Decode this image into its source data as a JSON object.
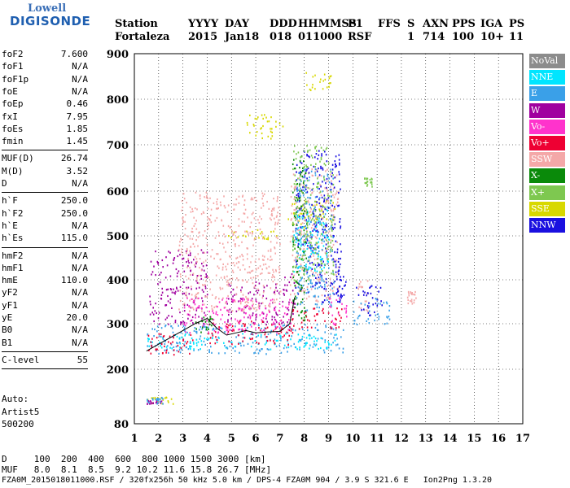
{
  "logo": {
    "top": "Lowell",
    "bottom": "DIGISONDE"
  },
  "header": {
    "labels": [
      "Station",
      "YYYY",
      "DAY",
      "DDD",
      "HHMMSS",
      "P1",
      "FFS",
      "S",
      "AXN",
      "PPS",
      "IGA",
      "PS"
    ],
    "values": [
      "Fortaleza",
      "2015",
      "Jan18",
      "018",
      "011000",
      "RSF",
      "1",
      "714",
      "100",
      "10+",
      "11"
    ]
  },
  "params": [
    {
      "group": [
        {
          "name": "foF2",
          "value": "7.600"
        },
        {
          "name": "foF1",
          "value": "N/A"
        },
        {
          "name": "foF1p",
          "value": "N/A"
        },
        {
          "name": "foE",
          "value": "N/A"
        },
        {
          "name": "foEp",
          "value": "0.46"
        },
        {
          "name": "fxI",
          "value": "7.95"
        },
        {
          "name": "foEs",
          "value": "1.85"
        },
        {
          "name": "fmin",
          "value": "1.45"
        }
      ]
    },
    {
      "group": [
        {
          "name": "MUF(D)",
          "value": "26.74"
        },
        {
          "name": "M(D)",
          "value": "3.52"
        },
        {
          "name": "D",
          "value": "N/A"
        }
      ]
    },
    {
      "group": [
        {
          "name": "h`F",
          "value": "250.0"
        },
        {
          "name": "h`F2",
          "value": "250.0"
        },
        {
          "name": "h`E",
          "value": "N/A"
        },
        {
          "name": "h`Es",
          "value": "115.0"
        }
      ]
    },
    {
      "group": [
        {
          "name": "hmF2",
          "value": "N/A"
        },
        {
          "name": "hmF1",
          "value": "N/A"
        },
        {
          "name": "hmE",
          "value": "110.0"
        },
        {
          "name": "yF2",
          "value": "N/A"
        },
        {
          "name": "yF1",
          "value": "N/A"
        },
        {
          "name": "yE",
          "value": "20.0"
        },
        {
          "name": "B0",
          "value": "N/A"
        },
        {
          "name": "B1",
          "value": "N/A"
        }
      ]
    },
    {
      "group": [
        {
          "name": "C-level",
          "value": "55"
        }
      ]
    }
  ],
  "auto": {
    "line1": "Auto:",
    "line2": "Artist5",
    "line3": "500200"
  },
  "legend": [
    {
      "label": "NoVal",
      "color": "#8c8c8c"
    },
    {
      "label": "NNE",
      "color": "#00e5ff"
    },
    {
      "label": "E",
      "color": "#3aa0e8"
    },
    {
      "label": "W",
      "color": "#a0009f"
    },
    {
      "label": "Vo-",
      "color": "#ff33cc"
    },
    {
      "label": "Vo+",
      "color": "#ee0033"
    },
    {
      "label": "SSW",
      "color": "#f4a8a8"
    },
    {
      "label": "X-",
      "color": "#0a8a0a"
    },
    {
      "label": "X+",
      "color": "#7ec850"
    },
    {
      "label": "SSE",
      "color": "#d8d800"
    },
    {
      "label": "NNW",
      "color": "#1a10e0"
    }
  ],
  "footer": {
    "d_line": "D     100  200  400  600  800 1000 1500 3000 [km]",
    "muf_line": "MUF   8.0  8.1  8.5  9.2 10.2 11.6 15.8 26.7 [MHz]",
    "file_line": "FZA0M_2015018011000.RSF / 320fx256h 50 kHz 5.0 km / DPS-4 FZA0M 904 / 3.9 S 321.6 E   Ion2Png 1.3.20"
  },
  "chart_data": {
    "type": "scatter",
    "title": "",
    "xlabel": "",
    "ylabel": "",
    "xlim": [
      1,
      17
    ],
    "ylim": [
      80,
      900
    ],
    "xticks": [
      1,
      2,
      3,
      4,
      5,
      6,
      7,
      8,
      9,
      10,
      11,
      12,
      13,
      14,
      15,
      16,
      17
    ],
    "yticks": [
      80,
      200,
      300,
      400,
      500,
      600,
      700,
      800,
      900
    ],
    "grid": true,
    "legend_position": "right",
    "series": [
      {
        "name": "SSE",
        "color": "#d8d800",
        "regions": [
          {
            "x": [
              4.6,
              6.9
            ],
            "y": [
              490,
              515
            ]
          },
          {
            "x": [
              5.6,
              7.1
            ],
            "y": [
              715,
              770
            ]
          },
          {
            "x": [
              7.3,
              9.3
            ],
            "y": [
              520,
              580
            ]
          },
          {
            "x": [
              1.5,
              2.6
            ],
            "y": [
              125,
              140
            ]
          },
          {
            "x": [
              8.0,
              9.3
            ],
            "y": [
              820,
              860
            ]
          }
        ]
      },
      {
        "name": "W",
        "color": "#a0009f",
        "regions": [
          {
            "x": [
              1.6,
              4.0
            ],
            "y": [
              300,
              470
            ]
          },
          {
            "x": [
              4.8,
              7.0
            ],
            "y": [
              300,
              400
            ]
          },
          {
            "x": [
              7.0,
              7.6
            ],
            "y": [
              300,
              420
            ]
          },
          {
            "x": [
              1.5,
              2.1
            ],
            "y": [
              125,
              133
            ]
          }
        ]
      },
      {
        "name": "SSW",
        "color": "#f4a8a8",
        "regions": [
          {
            "x": [
              2.8,
              7.0
            ],
            "y": [
              330,
              600
            ]
          },
          {
            "x": [
              7.4,
              9.4
            ],
            "y": [
              350,
              650
            ]
          },
          {
            "x": [
              10.2,
              10.6
            ],
            "y": [
              330,
              400
            ]
          },
          {
            "x": [
              12.2,
              12.6
            ],
            "y": [
              345,
              375
            ]
          }
        ]
      },
      {
        "name": "NNW",
        "color": "#1a10e0",
        "regions": [
          {
            "x": [
              7.6,
              9.5
            ],
            "y": [
              350,
              690
            ]
          },
          {
            "x": [
              9.2,
              9.7
            ],
            "y": [
              360,
              440
            ]
          },
          {
            "x": [
              10.1,
              11.2
            ],
            "y": [
              320,
              390
            ]
          }
        ]
      },
      {
        "name": "E",
        "color": "#3aa0e8",
        "regions": [
          {
            "x": [
              1.5,
              9.6
            ],
            "y": [
              235,
              300
            ]
          },
          {
            "x": [
              7.6,
              9.2
            ],
            "y": [
              330,
              650
            ]
          },
          {
            "x": [
              10.0,
              11.5
            ],
            "y": [
              300,
              360
            ]
          },
          {
            "x": [
              1.5,
              2.2
            ],
            "y": [
              125,
              140
            ]
          }
        ]
      },
      {
        "name": "NNE",
        "color": "#00e5ff",
        "regions": [
          {
            "x": [
              1.5,
              9.3
            ],
            "y": [
              245,
              280
            ]
          },
          {
            "x": [
              7.5,
              9.0
            ],
            "y": [
              420,
              560
            ]
          }
        ]
      },
      {
        "name": "Vo+",
        "color": "#ee0033",
        "regions": [
          {
            "x": [
              1.5,
              3.5
            ],
            "y": [
              232,
              280
            ]
          },
          {
            "x": [
              4.0,
              7.5
            ],
            "y": [
              255,
              310
            ]
          },
          {
            "x": [
              7.4,
              9.6
            ],
            "y": [
              290,
              340
            ]
          }
        ]
      },
      {
        "name": "Vo-",
        "color": "#ff33cc",
        "regions": [
          {
            "x": [
              3.0,
              7.5
            ],
            "y": [
              280,
              360
            ]
          },
          {
            "x": [
              9.0,
              9.8
            ],
            "y": [
              300,
              360
            ]
          }
        ]
      },
      {
        "name": "X-",
        "color": "#0a8a0a",
        "regions": [
          {
            "x": [
              7.5,
              8.1
            ],
            "y": [
              300,
              680
            ]
          },
          {
            "x": [
              3.5,
              4.2
            ],
            "y": [
              280,
              320
            ]
          }
        ]
      },
      {
        "name": "X+",
        "color": "#7ec850",
        "regions": [
          {
            "x": [
              7.5,
              9.2
            ],
            "y": [
              400,
              700
            ]
          },
          {
            "x": [
              10.4,
              10.8
            ],
            "y": [
              610,
              630
            ]
          }
        ]
      },
      {
        "name": "NoVal",
        "color": "#8c8c8c",
        "regions": []
      }
    ],
    "trace": {
      "color": "#000000",
      "x": [
        1.5,
        2.0,
        2.5,
        3.0,
        3.5,
        4.0,
        4.4,
        4.8,
        5.2,
        5.6,
        6.0,
        6.5,
        7.0,
        7.4,
        7.6
      ],
      "y": [
        240,
        255,
        270,
        285,
        300,
        312,
        290,
        275,
        280,
        285,
        280,
        282,
        283,
        300,
        360
      ]
    }
  }
}
